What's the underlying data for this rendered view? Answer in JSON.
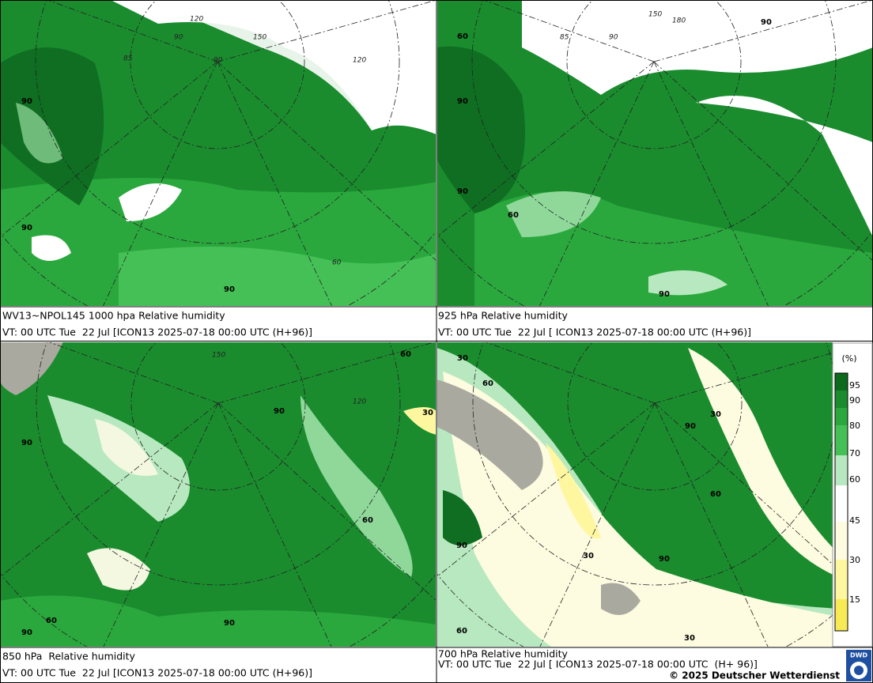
{
  "panels": [
    {
      "title": "WV13~NPOL145 1000 hpa Relative humidity",
      "vt": "VT: 00 UTC Tue  22 Jul [ICON13 2025-07-18 00:00 UTC (H+96)]",
      "labels": [
        "90",
        "90",
        "90",
        "120",
        "150",
        "120",
        "90",
        "90",
        "85",
        "60"
      ]
    },
    {
      "title": "925 hPa Relative humidity",
      "vt": "VT: 00 UTC Tue  22 Jul [ ICON13 2025-07-18 00:00 UTC (H+96)]",
      "labels": [
        "60",
        "90",
        "90",
        "60",
        "90",
        "150",
        "180",
        "90",
        "85",
        "90"
      ]
    },
    {
      "title": "850 hPa  Relative humidity",
      "vt": "VT: 00 UTC Tue  22 Jul [ICON13 2025-07-18 00:00 UTC (H+96)]",
      "labels": [
        "90",
        "90",
        "60",
        "60",
        "90",
        "30",
        "60",
        "90",
        "120",
        "150"
      ]
    },
    {
      "title": "700 hPa Relative humidity",
      "vt": "VT: 00 UTC Tue  22 Jul [ ICON13 2025-07-18 00:00 UTC  (H+ 96)]",
      "labels": [
        "30",
        "60",
        "30",
        "90",
        "60",
        "90",
        "30",
        "90",
        "60",
        "30"
      ]
    }
  ],
  "legend": {
    "unit": "(%)",
    "ticks": [
      "95",
      "90",
      "80",
      "70",
      "60",
      "45",
      "30",
      "15"
    ]
  },
  "footer": {
    "copyright": "© 2025 Deutscher Wetterdienst",
    "logo": "DWD"
  }
}
